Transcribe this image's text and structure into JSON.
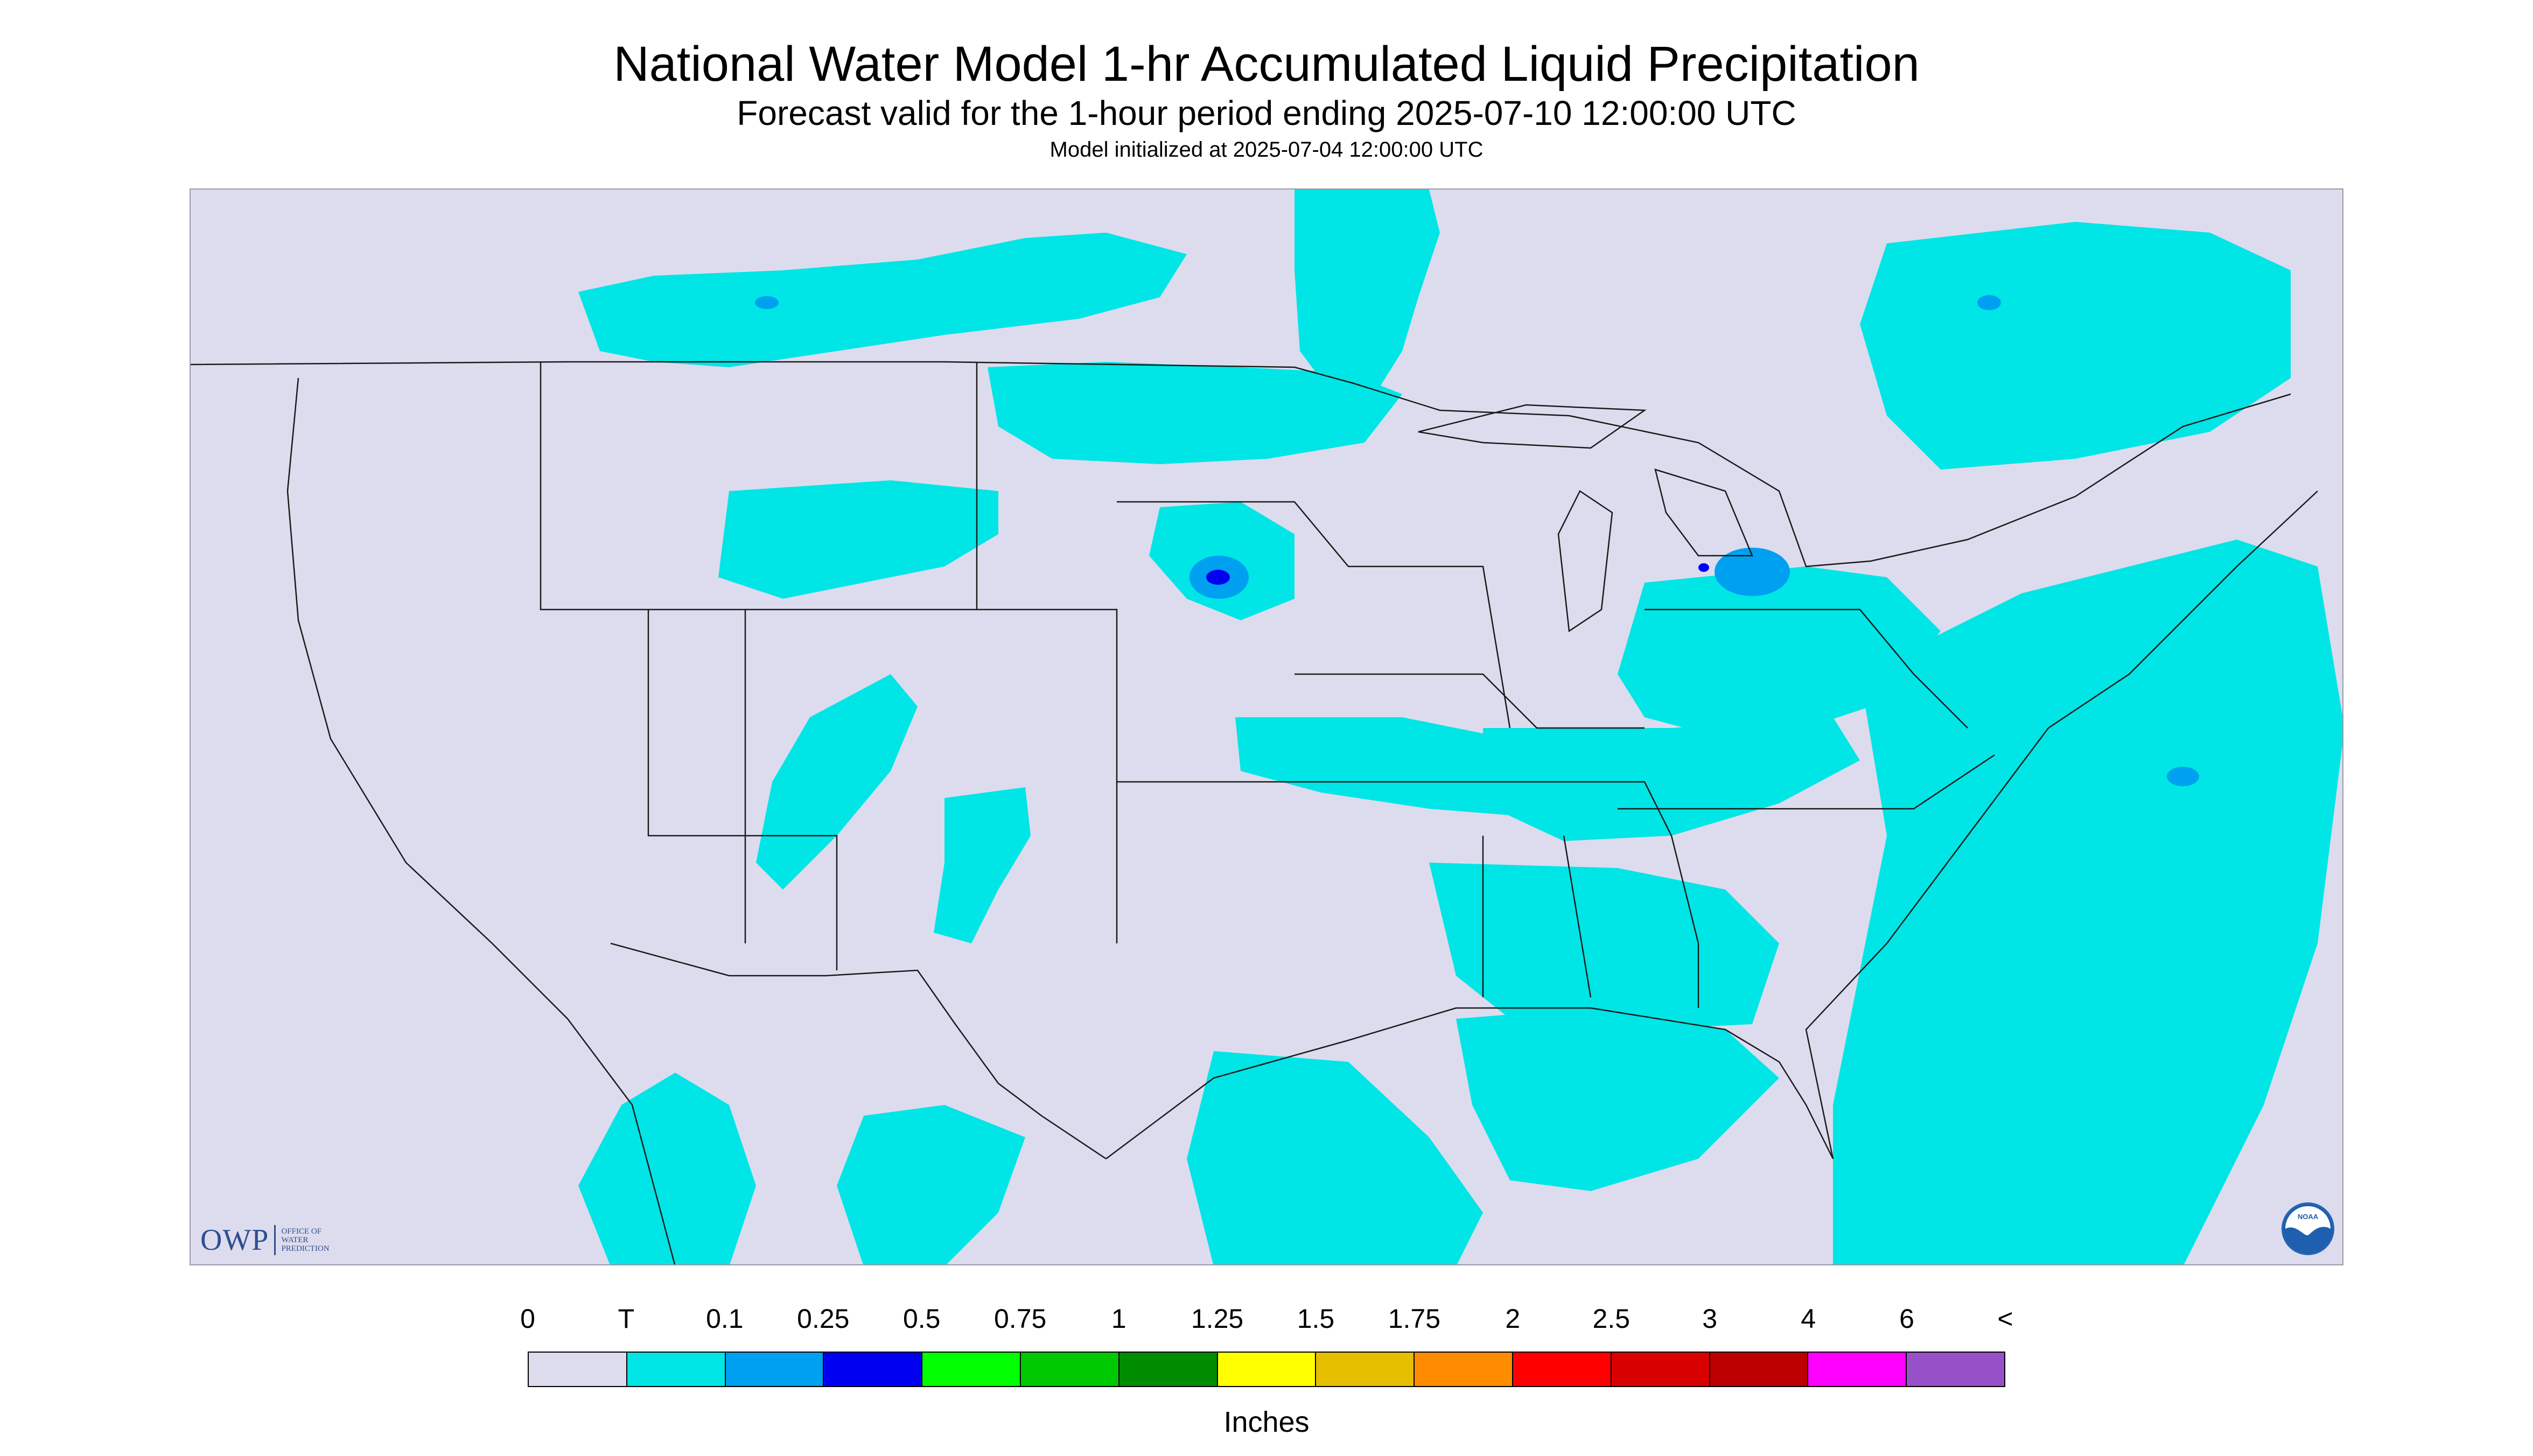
{
  "title": "National Water Model 1-hr Accumulated Liquid Precipitation",
  "subtitle": "Forecast valid for the 1-hour period ending 2025-07-10 12:00:00 UTC",
  "init_note": "Model initialized at 2025-07-04 12:00:00 UTC",
  "colors": {
    "background": "#ffffff",
    "no_data": "#dcdcee",
    "outside_domain": "#dcdcee",
    "boundary": "#1a1a1a",
    "trace": "#00e5e5"
  },
  "logos": {
    "owp": {
      "text": "OWP",
      "subtext": [
        "OFFICE OF",
        "WATER",
        "PREDICTION"
      ],
      "icon": "owp-logo"
    },
    "noaa": {
      "text": "NOAA",
      "icon": "noaa-logo"
    }
  },
  "legend": {
    "labels": [
      "0",
      "T",
      "0.1",
      "0.25",
      "0.5",
      "0.75",
      "1",
      "1.25",
      "1.5",
      "1.75",
      "2",
      "2.5",
      "3",
      "4",
      "6",
      "<"
    ],
    "colors": [
      "#dcdcee",
      "#00e5e5",
      "#00a0f0",
      "#0000f0",
      "#00ff00",
      "#00c800",
      "#008c00",
      "#ffff00",
      "#e6be00",
      "#ff8c00",
      "#ff0000",
      "#d80000",
      "#bc0000",
      "#ff00ff",
      "#9650c8"
    ],
    "units": "Inches"
  }
}
